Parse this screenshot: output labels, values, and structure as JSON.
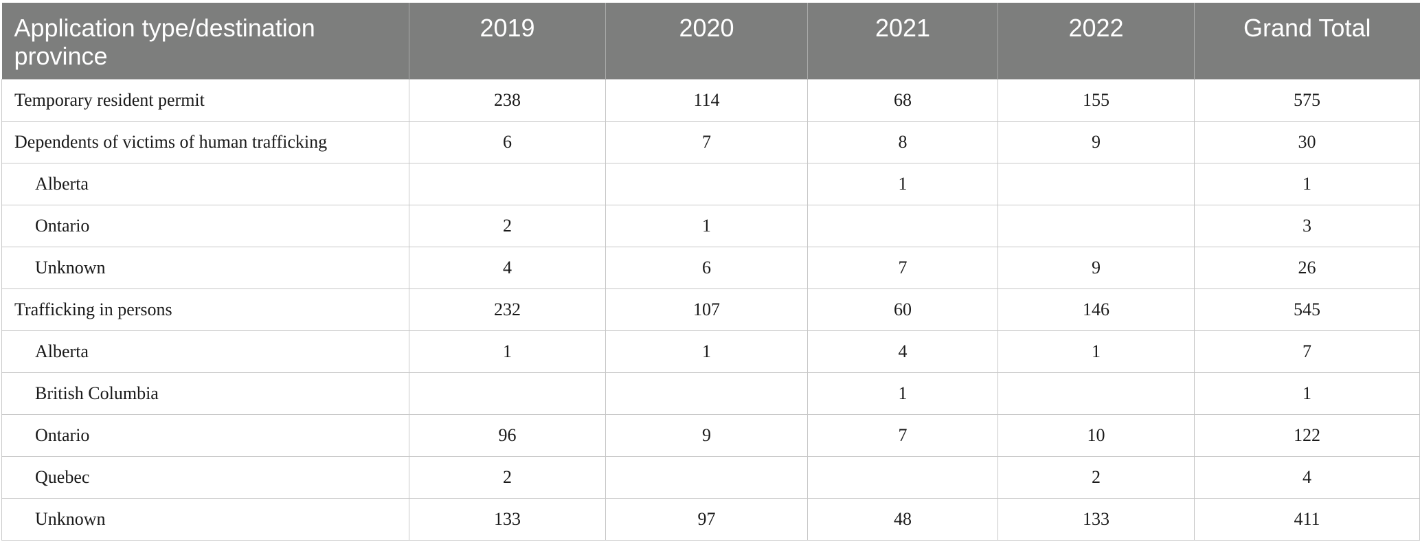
{
  "table": {
    "headers": [
      "Application type/destination province",
      "2019",
      "2020",
      "2021",
      "2022",
      "Grand Total"
    ],
    "rows": [
      {
        "label": "Temporary resident permit",
        "indent": false,
        "values": [
          "238",
          "114",
          "68",
          "155",
          "575"
        ]
      },
      {
        "label": "Dependents of victims of human trafficking",
        "indent": false,
        "values": [
          "6",
          "7",
          "8",
          "9",
          "30"
        ]
      },
      {
        "label": "Alberta",
        "indent": true,
        "values": [
          "",
          "",
          "1",
          "",
          "1"
        ]
      },
      {
        "label": "Ontario",
        "indent": true,
        "values": [
          "2",
          "1",
          "",
          "",
          "3"
        ]
      },
      {
        "label": "Unknown",
        "indent": true,
        "values": [
          "4",
          "6",
          "7",
          "9",
          "26"
        ]
      },
      {
        "label": "Trafficking in persons",
        "indent": false,
        "values": [
          "232",
          "107",
          "60",
          "146",
          "545"
        ]
      },
      {
        "label": "Alberta",
        "indent": true,
        "values": [
          "1",
          "1",
          "4",
          "1",
          "7"
        ]
      },
      {
        "label": "British Columbia",
        "indent": true,
        "values": [
          "",
          "",
          "1",
          "",
          "1"
        ]
      },
      {
        "label": "Ontario",
        "indent": true,
        "values": [
          "96",
          "9",
          "7",
          "10",
          "122"
        ]
      },
      {
        "label": "Quebec",
        "indent": true,
        "values": [
          "2",
          "",
          "",
          "2",
          "4"
        ]
      },
      {
        "label": "Unknown",
        "indent": true,
        "values": [
          "133",
          "97",
          "48",
          "133",
          "411"
        ]
      }
    ]
  },
  "colors": {
    "header_bg": "#7d7e7d",
    "header_text": "#ffffff",
    "grid": "#c7c7c7"
  }
}
